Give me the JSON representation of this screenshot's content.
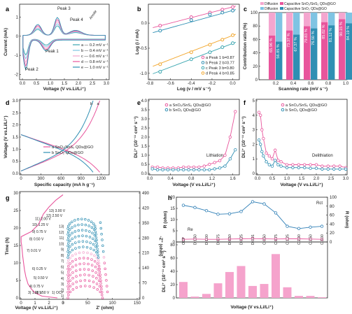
{
  "colors": {
    "pink": "#e8559c",
    "blue": "#2f8fb3",
    "teal": "#3aa6b0",
    "orange": "#f2a72e",
    "lightblue": "#7fc4e3",
    "lightpink": "#f4a6cf",
    "bar_pink": "#f5a3cc",
    "rct_blue": "#2f7fb6"
  },
  "panels": [
    "a",
    "b",
    "c",
    "d",
    "e",
    "f",
    "g",
    "h"
  ],
  "chart_data": [
    {
      "id": "a",
      "type": "line",
      "xlabel": "Voltage (V vs.Li/Li⁺)",
      "ylabel": "Current (mA)",
      "xlim": [
        0,
        3.0
      ],
      "ylim": [
        -2.2,
        1.6
      ],
      "xticks": [
        "0.0",
        "0.5",
        "1.0",
        "1.5",
        "2.0",
        "2.5",
        "3.0"
      ],
      "yticks": [
        "-2",
        "-1",
        "0",
        "1"
      ],
      "annotations": [
        "Peak 3",
        "Peak 4",
        "Peak 1",
        "Peak 2",
        "Anode"
      ],
      "series": [
        {
          "name": "0.2 mV s⁻¹",
          "color": "#3aa6b0"
        },
        {
          "name": "0.4 mV s⁻¹",
          "color": "#7fc4e3"
        },
        {
          "name": "0.6 mV s⁻¹",
          "color": "#f4a6cf"
        },
        {
          "name": "0.8 mV s⁻¹",
          "color": "#e8559c"
        },
        {
          "name": "1.0 mV s⁻¹",
          "color": "#2f8fb3"
        }
      ]
    },
    {
      "id": "b",
      "type": "scatter",
      "xlabel": "Log (v / mV s⁻¹)",
      "ylabel": "Log (i / mA)",
      "xlim": [
        -0.8,
        0.05
      ],
      "ylim": [
        -1.1,
        0.35
      ],
      "xticks": [
        "-0.8",
        "-0.6",
        "-0.4",
        "-0.2",
        "0.0"
      ],
      "yticks": [
        "-1.0",
        "-0.5",
        "0.0"
      ],
      "series": [
        {
          "name": "Peak 1",
          "label": "a",
          "b_text": "b=0.87",
          "color": "#e8559c",
          "x": [
            -0.7,
            -0.4,
            -0.22,
            -0.1,
            0.0
          ],
          "y": [
            -0.05,
            0.12,
            0.21,
            0.27,
            0.32
          ]
        },
        {
          "name": "Peak 2",
          "label": "b",
          "b_text": "b=0.77",
          "color": "#2f8fb3",
          "x": [
            -0.7,
            -0.4,
            -0.22,
            -0.1,
            0.0
          ],
          "y": [
            -0.15,
            0.06,
            0.17,
            0.21,
            0.25
          ]
        },
        {
          "name": "Peak 3",
          "label": "c",
          "b_text": "b=0.80",
          "color": "#3aa6b0",
          "x": [
            -0.7,
            -0.4,
            -0.22,
            -0.1,
            0.0
          ],
          "y": [
            -0.97,
            -0.72,
            -0.58,
            -0.48,
            -0.4
          ]
        },
        {
          "name": "Peak 4",
          "label": "d",
          "b_text": "b=0.85",
          "color": "#f2a72e",
          "x": [
            -0.7,
            -0.4,
            -0.22,
            -0.1,
            0.0
          ],
          "y": [
            -0.82,
            -0.58,
            -0.43,
            -0.33,
            -0.24
          ]
        }
      ]
    },
    {
      "id": "c",
      "type": "bar",
      "xlabel": "Scanning rate (mV s⁻¹)",
      "ylabel": "Contribution ratio (%)",
      "ylim": [
        0,
        100
      ],
      "yticks": [
        "0",
        "20",
        "40",
        "60",
        "80",
        "100"
      ],
      "categories": [
        "0.2",
        "0.4",
        "0.6",
        "0.8",
        "1.0"
      ],
      "legend": [
        "Diffusion",
        "Diffusion",
        "Capacitive SnO₂/SnS₂ QDs@GO",
        "Capacitive SnO₂ QDs@GO"
      ],
      "series": [
        {
          "name": "Capacitive SnO₂/SnS₂ QDs@GO",
          "color": "#e8559c",
          "values": [
            65.96,
            73.37,
            79.83,
            85.82,
            90.15
          ],
          "labels": [
            "65.96 %",
            "73.37 %",
            "79.83 %",
            "85.82 %",
            "90.15 %"
          ]
        },
        {
          "name": "Capacitive SnO₂ QDs@GO",
          "color": "#2f8fb3",
          "values": [
            56.85,
            67.37,
            76.5,
            81.12,
            84.19
          ],
          "labels": [
            "56.85 %",
            "67.37 %",
            "76.50 %",
            "81.12 %",
            "84.19 %"
          ]
        }
      ]
    },
    {
      "id": "d",
      "type": "line",
      "xlabel": "Specific capacity (mA h g⁻¹)",
      "ylabel": "Voltage (V vs.Li/Li⁺)",
      "xlim": [
        0,
        1300
      ],
      "ylim": [
        0,
        3.0
      ],
      "xticks": [
        "0",
        "300",
        "600",
        "900",
        "1200"
      ],
      "yticks": [
        "0.0",
        "0.5",
        "1.0",
        "1.5",
        "2.0",
        "2.5",
        "3.0"
      ],
      "series": [
        {
          "name": "SnO₂/SnS₂ QDs@GO",
          "label": "a",
          "color": "#e8559c"
        },
        {
          "name": "SnO₂ QDs@GO",
          "label": "b",
          "color": "#2f8fb3"
        }
      ]
    },
    {
      "id": "e",
      "type": "line",
      "xlabel": "Voltage (V vs.Li/Li⁺)",
      "ylabel": "DLi⁺ (10⁻¹¹ cm² s⁻¹)",
      "xlim": [
        0,
        1.7
      ],
      "ylim": [
        0,
        4.0
      ],
      "xticks": [
        "0.0",
        "0.4",
        "0.8",
        "1.2",
        "1.6"
      ],
      "yticks": [
        "0.0",
        "0.5",
        "1.0",
        "1.5",
        "2.0",
        "2.5",
        "3.0",
        "3.5",
        "4.0"
      ],
      "annotations": [
        "Lithiation"
      ],
      "series": [
        {
          "name": "SnO₂/SnS₂ QDs@GO",
          "label": "a",
          "color": "#e8559c",
          "x": [
            0.05,
            0.15,
            0.25,
            0.35,
            0.45,
            0.55,
            0.65,
            0.75,
            0.85,
            0.95,
            1.05,
            1.15,
            1.25,
            1.35,
            1.45,
            1.55,
            1.65
          ],
          "y": [
            0.35,
            0.35,
            0.3,
            0.3,
            0.3,
            0.3,
            0.35,
            0.35,
            0.35,
            0.35,
            0.4,
            0.5,
            0.6,
            0.7,
            1.0,
            2.0,
            3.4
          ]
        },
        {
          "name": "SnO₂ QDs@GO",
          "label": "b",
          "color": "#2f8fb3",
          "x": [
            0.05,
            0.15,
            0.25,
            0.35,
            0.45,
            0.55,
            0.65,
            0.75,
            0.85,
            0.95,
            1.05,
            1.15,
            1.25,
            1.35,
            1.45,
            1.55,
            1.65
          ],
          "y": [
            0.25,
            0.2,
            0.2,
            0.2,
            0.2,
            0.2,
            0.2,
            0.2,
            0.2,
            0.2,
            0.2,
            0.2,
            0.25,
            0.3,
            0.4,
            0.8,
            1.3
          ]
        }
      ]
    },
    {
      "id": "f",
      "type": "line",
      "xlabel": "Voltage (V vs.Li/Li⁺)",
      "ylabel": "DLi⁺ (10⁻¹¹ cm² s⁻¹)",
      "xlim": [
        0,
        3.0
      ],
      "ylim": [
        0,
        5.0
      ],
      "xticks": [
        "0.0",
        "0.5",
        "1.0",
        "1.5",
        "2.0",
        "2.5",
        "3.0"
      ],
      "yticks": [
        "0",
        "1",
        "2",
        "3",
        "4",
        "5"
      ],
      "annotations": [
        "Delithiation"
      ],
      "series": [
        {
          "name": "SnO₂/SnS₂ QDs@GO",
          "label": "a",
          "color": "#e8559c",
          "x": [
            0.05,
            0.1,
            0.15,
            0.2,
            0.3,
            0.4,
            0.5,
            0.6,
            0.7,
            0.8,
            1.0,
            1.2,
            1.4,
            1.6,
            1.8,
            2.0,
            2.2,
            2.4,
            2.6,
            2.8,
            3.0
          ],
          "y": [
            4.2,
            4.0,
            3.0,
            2.4,
            1.4,
            1.2,
            1.0,
            1.6,
            0.9,
            0.8,
            0.6,
            0.6,
            0.6,
            0.6,
            0.6,
            0.6,
            0.5,
            0.5,
            0.5,
            0.5,
            0.4
          ]
        },
        {
          "name": "SnO₂ QDs@GO",
          "label": "b",
          "color": "#2f8fb3",
          "x": [
            0.05,
            0.1,
            0.15,
            0.2,
            0.3,
            0.4,
            0.5,
            0.6,
            0.7,
            0.8,
            1.0,
            1.2,
            1.4,
            1.6,
            1.8,
            2.0,
            2.2,
            2.4,
            2.6,
            2.8,
            3.0
          ],
          "y": [
            2.3,
            2.0,
            1.5,
            1.2,
            0.8,
            0.6,
            0.5,
            0.9,
            0.6,
            0.5,
            0.4,
            0.4,
            0.4,
            0.4,
            0.35,
            0.35,
            0.3,
            0.3,
            0.3,
            0.3,
            0.3
          ]
        }
      ]
    },
    {
      "id": "g",
      "type": "line",
      "xlabel": "Voltage (V vs.Li/Li⁺)",
      "ylabel": "Time (h)",
      "xlabel2": "Z' (ohm)",
      "ylabel2": "-Z'' (ohm)",
      "xlim": [
        0,
        3
      ],
      "ylim": [
        0,
        30
      ],
      "xticks": [
        "0",
        "1",
        "2",
        "3"
      ],
      "yticks": [
        "0",
        "5",
        "10",
        "15",
        "20",
        "25",
        "30"
      ],
      "x2ticks": [
        "0",
        "50",
        "100",
        "150"
      ],
      "y2ticks": [
        "0",
        "70",
        "140",
        "210",
        "280",
        "350",
        "420",
        "490"
      ],
      "points": [
        "1) OCP",
        "2) 1.50 V",
        "3) 1.00 V",
        "4) 0.75 V",
        "5) 0.50 V",
        "6) 0.25 V",
        "7) 0.01 V",
        "8) 0.50 V",
        "9) 0.75 V",
        "10) 1.25 V",
        "11) 2.00 V",
        "12) 2.50 V",
        "13) 3.00 V"
      ],
      "nyquist_labels": [
        "1)",
        "2)",
        "3)",
        "4)",
        "5)",
        "6)",
        "7)",
        "8)",
        "9)",
        "10)",
        "11)",
        "12)",
        "13)"
      ]
    },
    {
      "id": "h",
      "type": "line+bar",
      "xlabel": "Voltage (V vs.Li/Li⁺)",
      "ylabel_top_left": "R (ohm)",
      "ylabel_top_right": "R (ohm)",
      "ylabel_bottom": "DLi⁺ (10⁻¹¹ cm² s⁻¹)",
      "categories": [
        "OCP",
        "D 1.50",
        "D 1.00",
        "D 0.75",
        "D 0.50",
        "D 0.25",
        "D 0.01",
        "C 0.50",
        "C 0.75",
        "C 1.25",
        "C 2.00",
        "C 2.50",
        "C 3.00"
      ],
      "y_top_left_ticks": [
        "0",
        "5",
        "10",
        "15",
        "20"
      ],
      "y_top_right_ticks": [
        "0",
        "20",
        "40",
        "60",
        "80",
        "100"
      ],
      "y_bottom_ticks": [
        "0",
        "20",
        "40",
        "60",
        "80"
      ],
      "series": [
        {
          "name": "Rct",
          "axis": "right",
          "color": "#2f7fb6",
          "values": [
            82,
            77,
            70,
            62,
            63,
            68,
            90,
            85,
            65,
            35,
            30,
            33,
            35
          ]
        },
        {
          "name": "Re",
          "axis": "left",
          "color": "#e8559c",
          "values": [
            1.2,
            1.3,
            1.2,
            1.2,
            1.3,
            1.4,
            1.5,
            1.4,
            1.3,
            1.4,
            1.4,
            1.3,
            1.2
          ]
        },
        {
          "name": "DLi⁺",
          "axis": "bottom",
          "color": "#f5a3cc",
          "values": [
            24,
            2,
            6,
            22,
            39,
            48,
            18,
            21,
            66,
            16,
            3,
            3,
            1
          ]
        }
      ]
    }
  ]
}
